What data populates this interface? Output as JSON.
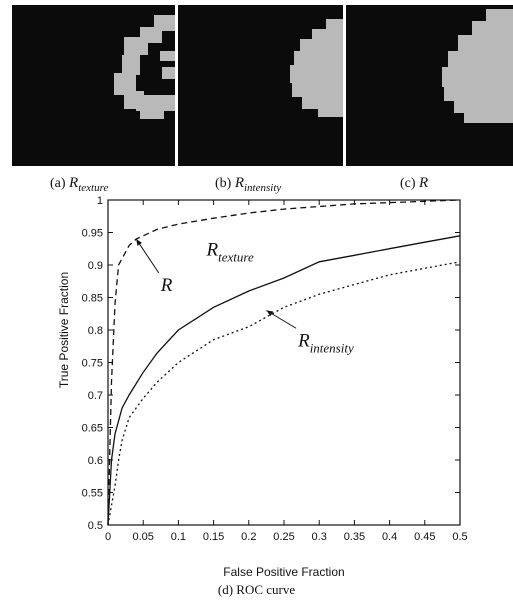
{
  "panels": [
    {
      "tag": "(a)",
      "symbol": "R",
      "subscript": "texture"
    },
    {
      "tag": "(b)",
      "symbol": "R",
      "subscript": "intensity"
    },
    {
      "tag": "(c)",
      "symbol": "R",
      "subscript": ""
    }
  ],
  "region_color": "#b9b9b9",
  "background_color": "#0b0b0b",
  "bottom_caption": "(d) ROC curve",
  "chart_data": {
    "type": "line",
    "xlabel": "False Positive Fraction",
    "ylabel": "True Positive Fraction",
    "xlim": [
      0,
      0.5
    ],
    "ylim": [
      0.5,
      1
    ],
    "xticks": [
      "0",
      "0.05",
      "0.1",
      "0.15",
      "0.2",
      "0.25",
      "0.3",
      "0.35",
      "0.4",
      "0.45",
      "0.5"
    ],
    "yticks": [
      "0.5",
      "0.55",
      "0.6",
      "0.65",
      "0.7",
      "0.75",
      "0.8",
      "0.85",
      "0.9",
      "0.95",
      "1"
    ],
    "grid": false,
    "series": [
      {
        "name": "R",
        "style": "dashed",
        "x": [
          0,
          0.005,
          0.01,
          0.015,
          0.02,
          0.03,
          0.04,
          0.05,
          0.07,
          0.1,
          0.15,
          0.2,
          0.25,
          0.3,
          0.35,
          0.4,
          0.45,
          0.5
        ],
        "y": [
          0.5,
          0.72,
          0.84,
          0.9,
          0.91,
          0.93,
          0.94,
          0.945,
          0.955,
          0.963,
          0.972,
          0.98,
          0.986,
          0.99,
          0.994,
          0.996,
          0.998,
          1.0
        ]
      },
      {
        "name": "R texture",
        "style": "solid",
        "x": [
          0,
          0.005,
          0.01,
          0.02,
          0.03,
          0.05,
          0.07,
          0.1,
          0.15,
          0.2,
          0.25,
          0.3,
          0.35,
          0.4,
          0.45,
          0.5
        ],
        "y": [
          0.5,
          0.6,
          0.64,
          0.68,
          0.7,
          0.735,
          0.765,
          0.8,
          0.835,
          0.86,
          0.88,
          0.905,
          0.915,
          0.925,
          0.935,
          0.945
        ]
      },
      {
        "name": "R intensity",
        "style": "dotted",
        "x": [
          0,
          0.005,
          0.01,
          0.015,
          0.02,
          0.03,
          0.05,
          0.07,
          0.1,
          0.15,
          0.2,
          0.25,
          0.3,
          0.35,
          0.4,
          0.45,
          0.5
        ],
        "y": [
          0.5,
          0.53,
          0.56,
          0.6,
          0.63,
          0.665,
          0.695,
          0.72,
          0.75,
          0.785,
          0.805,
          0.835,
          0.855,
          0.87,
          0.885,
          0.895,
          0.905
        ]
      }
    ],
    "annotations": [
      {
        "symbol": "R",
        "subscript": "",
        "x": 0.075,
        "y": 0.86,
        "arrow_to": [
          0.04,
          0.94
        ]
      },
      {
        "symbol": "R",
        "subscript": "texture",
        "x": 0.14,
        "y": 0.915,
        "arrow_to": null
      },
      {
        "symbol": "R",
        "subscript": "intensity",
        "x": 0.27,
        "y": 0.775,
        "arrow_to": [
          0.225,
          0.83
        ]
      }
    ]
  }
}
